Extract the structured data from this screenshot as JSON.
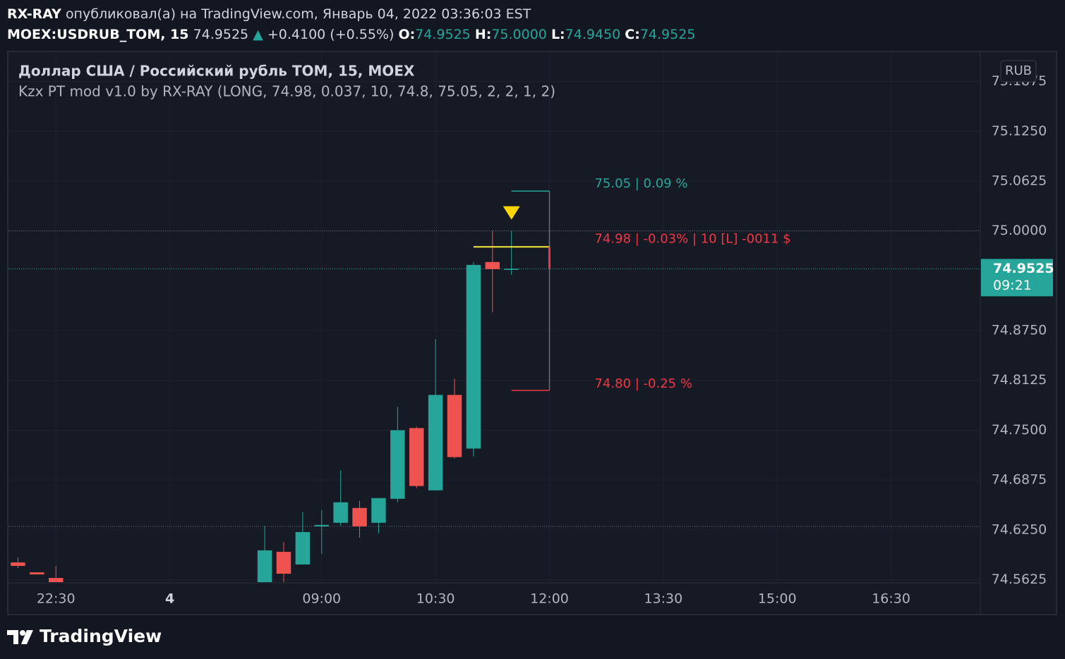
{
  "header": {
    "author": "RX-RAY",
    "published": "опубликовал(а) на TradingView.com, Январь 04, 2022 03:36:03 EST",
    "symbol": "MOEX:USDRUB_TOM, 15",
    "price": "74.9525",
    "arrow": "▲",
    "change": "+0.4100 (+0.55%)",
    "o_label": "O:",
    "o": "74.9525",
    "h_label": "H:",
    "h": "75.0000",
    "l_label": "L:",
    "l": "74.9450",
    "c_label": "C:",
    "c": "74.9525"
  },
  "chart_data": {
    "type": "candlestick",
    "title": "Доллар США / Российский рубль TOM, 15, MOEX",
    "subtitle": "Kzx PT mod v1.0 by RX-RAY (LONG, 74.98, 0.037, 10, 74.8, 75.05, 2, 2, 1, 2)",
    "currency": "RUB",
    "x": [
      0,
      1,
      2,
      13,
      14,
      15,
      16,
      17,
      18,
      19,
      20,
      21,
      22,
      23,
      24,
      25,
      26
    ],
    "open": [
      74.5842,
      74.5718,
      74.5647,
      74.5585,
      74.5975,
      74.5816,
      74.6294,
      74.6339,
      74.6525,
      74.6339,
      74.664,
      74.7527,
      74.6746,
      74.7943,
      74.727,
      74.961,
      74.9525
    ],
    "high": [
      74.5904,
      74.5718,
      74.5798,
      74.6303,
      74.6099,
      74.6472,
      74.6498,
      74.6995,
      74.6613,
      74.6649,
      74.7793,
      74.7544,
      74.8644,
      74.8147,
      74.961,
      75.0,
      75.0
    ],
    "low": [
      74.5771,
      74.5691,
      74.5585,
      74.5585,
      74.5594,
      74.5816,
      74.5949,
      74.6303,
      74.6152,
      74.6206,
      74.6596,
      74.6773,
      74.6746,
      74.7145,
      74.7172,
      74.898,
      74.945
    ],
    "close": [
      74.5798,
      74.5691,
      74.5585,
      74.5993,
      74.57,
      74.6223,
      74.6312,
      74.6596,
      74.6294,
      74.6649,
      74.75,
      74.68,
      74.7943,
      74.7163,
      74.9574,
      74.9521,
      74.9525
    ],
    "up_color": "#26a69a",
    "down_color": "#ef5350",
    "xlim": [
      -0.5,
      50.7
    ],
    "xticks": [
      {
        "value": 2,
        "label": "22:30"
      },
      {
        "value": 8,
        "label": "4"
      },
      {
        "value": 16,
        "label": "09:00"
      },
      {
        "value": 22,
        "label": "10:30"
      },
      {
        "value": 28,
        "label": "12:00"
      },
      {
        "value": 34,
        "label": "13:30"
      },
      {
        "value": 40,
        "label": "15:00"
      },
      {
        "value": 46,
        "label": "16:30"
      }
    ],
    "ylim": [
      74.5594,
      75.2243
    ],
    "yticks": [
      {
        "value": 75.1875,
        "label": "75.1875"
      },
      {
        "value": 75.125,
        "label": "75.1250"
      },
      {
        "value": 75.0625,
        "label": "75.0625"
      },
      {
        "value": 75.0,
        "label": "75.0000"
      },
      {
        "value": 74.875,
        "label": "74.8750"
      },
      {
        "value": 74.8125,
        "label": "74.8125"
      },
      {
        "value": 74.75,
        "label": "74.7500"
      },
      {
        "value": 74.6875,
        "label": "74.6875"
      },
      {
        "value": 74.625,
        "label": "74.6250"
      },
      {
        "value": 74.5625,
        "label": "74.5625"
      }
    ],
    "grid": true,
    "levels": [
      75.0,
      74.6294
    ],
    "last_price": 74.9525,
    "countdown": "09:21",
    "take_profit": 75.05,
    "take_profit_label": "75.05 | 0.09 %",
    "take_profit_color": "#26a69a",
    "entry": 74.98,
    "entry_label": "74.98 | -0.03% | 10 [L] -0011 $",
    "entry_color": "#ffeb3b",
    "stop_loss": 74.8,
    "stop_loss_label": "74.80 | -0.25 %",
    "loss_color": "#f23645",
    "signal_color": "#ffd600"
  },
  "footer": {
    "brand": "TradingView"
  }
}
